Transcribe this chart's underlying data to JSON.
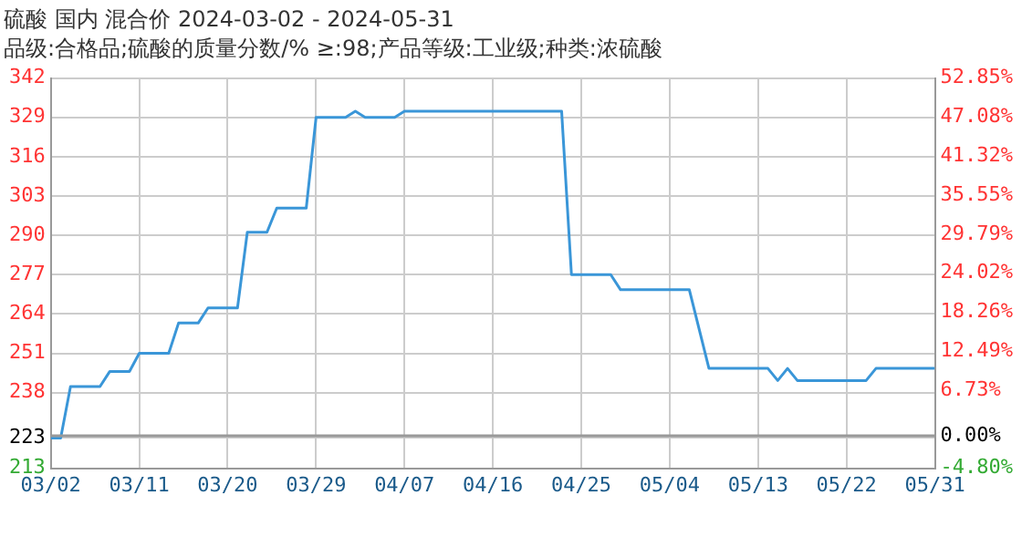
{
  "chart_data": {
    "type": "line",
    "title": "硫酸 国内 混合价 2024-03-02 - 2024-05-31",
    "subtitle": "品级:合格品;硫酸的质量分数/% ≥:98;产品等级:工业级;种类:浓硫酸",
    "x": [
      "2024-03-02",
      "2024-03-03",
      "2024-03-04",
      "2024-03-07",
      "2024-03-08",
      "2024-03-10",
      "2024-03-11",
      "2024-03-14",
      "2024-03-15",
      "2024-03-17",
      "2024-03-18",
      "2024-03-21",
      "2024-03-22",
      "2024-03-24",
      "2024-03-25",
      "2024-03-28",
      "2024-03-29",
      "2024-04-01",
      "2024-04-02",
      "2024-04-03",
      "2024-04-06",
      "2024-04-07",
      "2024-04-23",
      "2024-04-24",
      "2024-04-28",
      "2024-04-29",
      "2024-05-06",
      "2024-05-08",
      "2024-05-14",
      "2024-05-15",
      "2024-05-16",
      "2024-05-17",
      "2024-05-24",
      "2024-05-25",
      "2024-05-31"
    ],
    "series": [
      {
        "color": "#3a96d8",
        "values": [
          223,
          223,
          240,
          240,
          245,
          245,
          251,
          251,
          261,
          261,
          266,
          266,
          291,
          291,
          299,
          299,
          329,
          329,
          331,
          329,
          329,
          331,
          331,
          277,
          277,
          272,
          272,
          246,
          246,
          242,
          246,
          242,
          242,
          246,
          246
        ]
      }
    ],
    "xlim": [
      "2024-03-02",
      "2024-05-31"
    ],
    "xticks": [
      {
        "value": "2024-03-02",
        "label": "03/02"
      },
      {
        "value": "2024-03-11",
        "label": "03/11"
      },
      {
        "value": "2024-03-20",
        "label": "03/20"
      },
      {
        "value": "2024-03-29",
        "label": "03/29"
      },
      {
        "value": "2024-04-07",
        "label": "04/07"
      },
      {
        "value": "2024-04-16",
        "label": "04/16"
      },
      {
        "value": "2024-04-25",
        "label": "04/25"
      },
      {
        "value": "2024-05-04",
        "label": "05/04"
      },
      {
        "value": "2024-05-13",
        "label": "05/13"
      },
      {
        "value": "2024-05-22",
        "label": "05/22"
      },
      {
        "value": "2024-05-31",
        "label": "05/31"
      }
    ],
    "ylim": [
      213,
      342
    ],
    "yticks": [
      213,
      223,
      238,
      251,
      264,
      277,
      290,
      303,
      316,
      329,
      342
    ],
    "y2lim": [
      -4.8,
      52.85
    ],
    "y2ticks": [
      {
        "value": -4.8,
        "label": "-4.80%"
      },
      {
        "value": 0,
        "label": "0.00%"
      },
      {
        "value": 6.73,
        "label": "6.73%"
      },
      {
        "value": 12.49,
        "label": "12.49%"
      },
      {
        "value": 18.26,
        "label": "18.26%"
      },
      {
        "value": 24.02,
        "label": "24.02%"
      },
      {
        "value": 29.79,
        "label": "29.79%"
      },
      {
        "value": 35.55,
        "label": "35.55%"
      },
      {
        "value": 41.32,
        "label": "41.32%"
      },
      {
        "value": 47.08,
        "label": "47.08%"
      },
      {
        "value": 52.85,
        "label": "52.85%"
      }
    ],
    "ref_lines": [
      {
        "axis": "y2",
        "value": 0,
        "color": "#999999"
      }
    ],
    "grid": true,
    "legend": false,
    "marker": "none",
    "line_style": "solid"
  }
}
